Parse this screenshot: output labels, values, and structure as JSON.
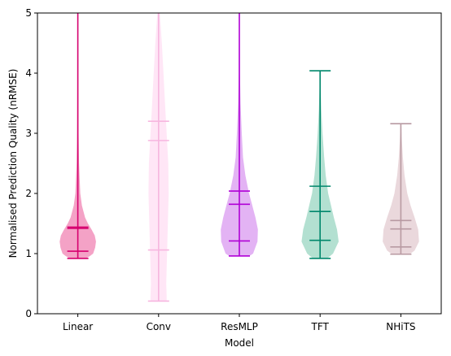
{
  "chart_data": {
    "type": "violin",
    "title": "",
    "xlabel": "Model",
    "ylabel": "Normalised Prediction Quality (nRMSE)",
    "ylim": [
      0,
      5
    ],
    "yticks": [
      0,
      1,
      2,
      3,
      4,
      5
    ],
    "grid": false,
    "categories": [
      "Linear",
      "Conv",
      "ResMLP",
      "TFT",
      "NHiTS"
    ],
    "violins": [
      {
        "category": "Linear",
        "color": "#d6006e",
        "fill": "#f4a2c6",
        "fill_opacity": 1.0,
        "min": 0.92,
        "max": 5.0,
        "lines": [
          1.04,
          1.42,
          1.44
        ],
        "profile": [
          [
            0.92,
            0.2
          ],
          [
            0.96,
            0.3
          ],
          [
            1.0,
            0.38
          ],
          [
            1.1,
            0.43
          ],
          [
            1.2,
            0.45
          ],
          [
            1.3,
            0.42
          ],
          [
            1.4,
            0.34
          ],
          [
            1.5,
            0.25
          ],
          [
            1.6,
            0.18
          ],
          [
            1.8,
            0.1
          ],
          [
            2.0,
            0.06
          ],
          [
            2.5,
            0.03
          ],
          [
            3.0,
            0.018
          ],
          [
            4.0,
            0.01
          ],
          [
            5.0,
            0.006
          ]
        ]
      },
      {
        "category": "Conv",
        "color": "#f7b6df",
        "fill": "#ffe6f6",
        "fill_opacity": 1.0,
        "min": 0.21,
        "max": 5.0,
        "lines": [
          1.06,
          2.88,
          3.2
        ],
        "profile": [
          [
            0.21,
            0.2
          ],
          [
            0.3,
            0.2
          ],
          [
            0.5,
            0.19
          ],
          [
            1.0,
            0.21
          ],
          [
            1.5,
            0.23
          ],
          [
            2.0,
            0.25
          ],
          [
            2.5,
            0.24
          ],
          [
            3.0,
            0.2
          ],
          [
            3.5,
            0.16
          ],
          [
            4.0,
            0.12
          ],
          [
            4.5,
            0.08
          ],
          [
            4.8,
            0.05
          ],
          [
            5.0,
            0.03
          ]
        ]
      },
      {
        "category": "ResMLP",
        "color": "#b000d6",
        "fill": "#e3b3f4",
        "fill_opacity": 1.0,
        "min": 0.96,
        "max": 5.0,
        "lines": [
          1.21,
          1.82,
          2.04
        ],
        "profile": [
          [
            0.96,
            0.25
          ],
          [
            1.0,
            0.34
          ],
          [
            1.2,
            0.45
          ],
          [
            1.4,
            0.46
          ],
          [
            1.6,
            0.4
          ],
          [
            1.8,
            0.32
          ],
          [
            2.0,
            0.24
          ],
          [
            2.3,
            0.15
          ],
          [
            2.6,
            0.09
          ],
          [
            3.0,
            0.06
          ],
          [
            3.5,
            0.03
          ],
          [
            4.0,
            0.015
          ],
          [
            5.0,
            0.008
          ]
        ]
      },
      {
        "category": "TFT",
        "color": "#00876c",
        "fill": "#b3e0d1",
        "fill_opacity": 1.0,
        "min": 0.92,
        "max": 4.04,
        "lines": [
          1.22,
          1.7,
          2.12
        ],
        "profile": [
          [
            0.92,
            0.18
          ],
          [
            1.0,
            0.32
          ],
          [
            1.2,
            0.46
          ],
          [
            1.4,
            0.42
          ],
          [
            1.6,
            0.34
          ],
          [
            1.8,
            0.27
          ],
          [
            2.0,
            0.2
          ],
          [
            2.3,
            0.14
          ],
          [
            2.6,
            0.1
          ],
          [
            3.0,
            0.06
          ],
          [
            3.4,
            0.03
          ],
          [
            3.8,
            0.012
          ],
          [
            4.04,
            0.006
          ]
        ]
      },
      {
        "category": "NHiTS",
        "color": "#b89aa2",
        "fill": "#ead8dc",
        "fill_opacity": 1.0,
        "min": 0.99,
        "max": 3.16,
        "lines": [
          1.11,
          1.41,
          1.55
        ],
        "profile": [
          [
            0.99,
            0.22
          ],
          [
            1.05,
            0.34
          ],
          [
            1.2,
            0.45
          ],
          [
            1.4,
            0.43
          ],
          [
            1.6,
            0.34
          ],
          [
            1.8,
            0.24
          ],
          [
            2.0,
            0.16
          ],
          [
            2.3,
            0.09
          ],
          [
            2.6,
            0.05
          ],
          [
            2.9,
            0.025
          ],
          [
            3.16,
            0.01
          ]
        ]
      }
    ]
  }
}
